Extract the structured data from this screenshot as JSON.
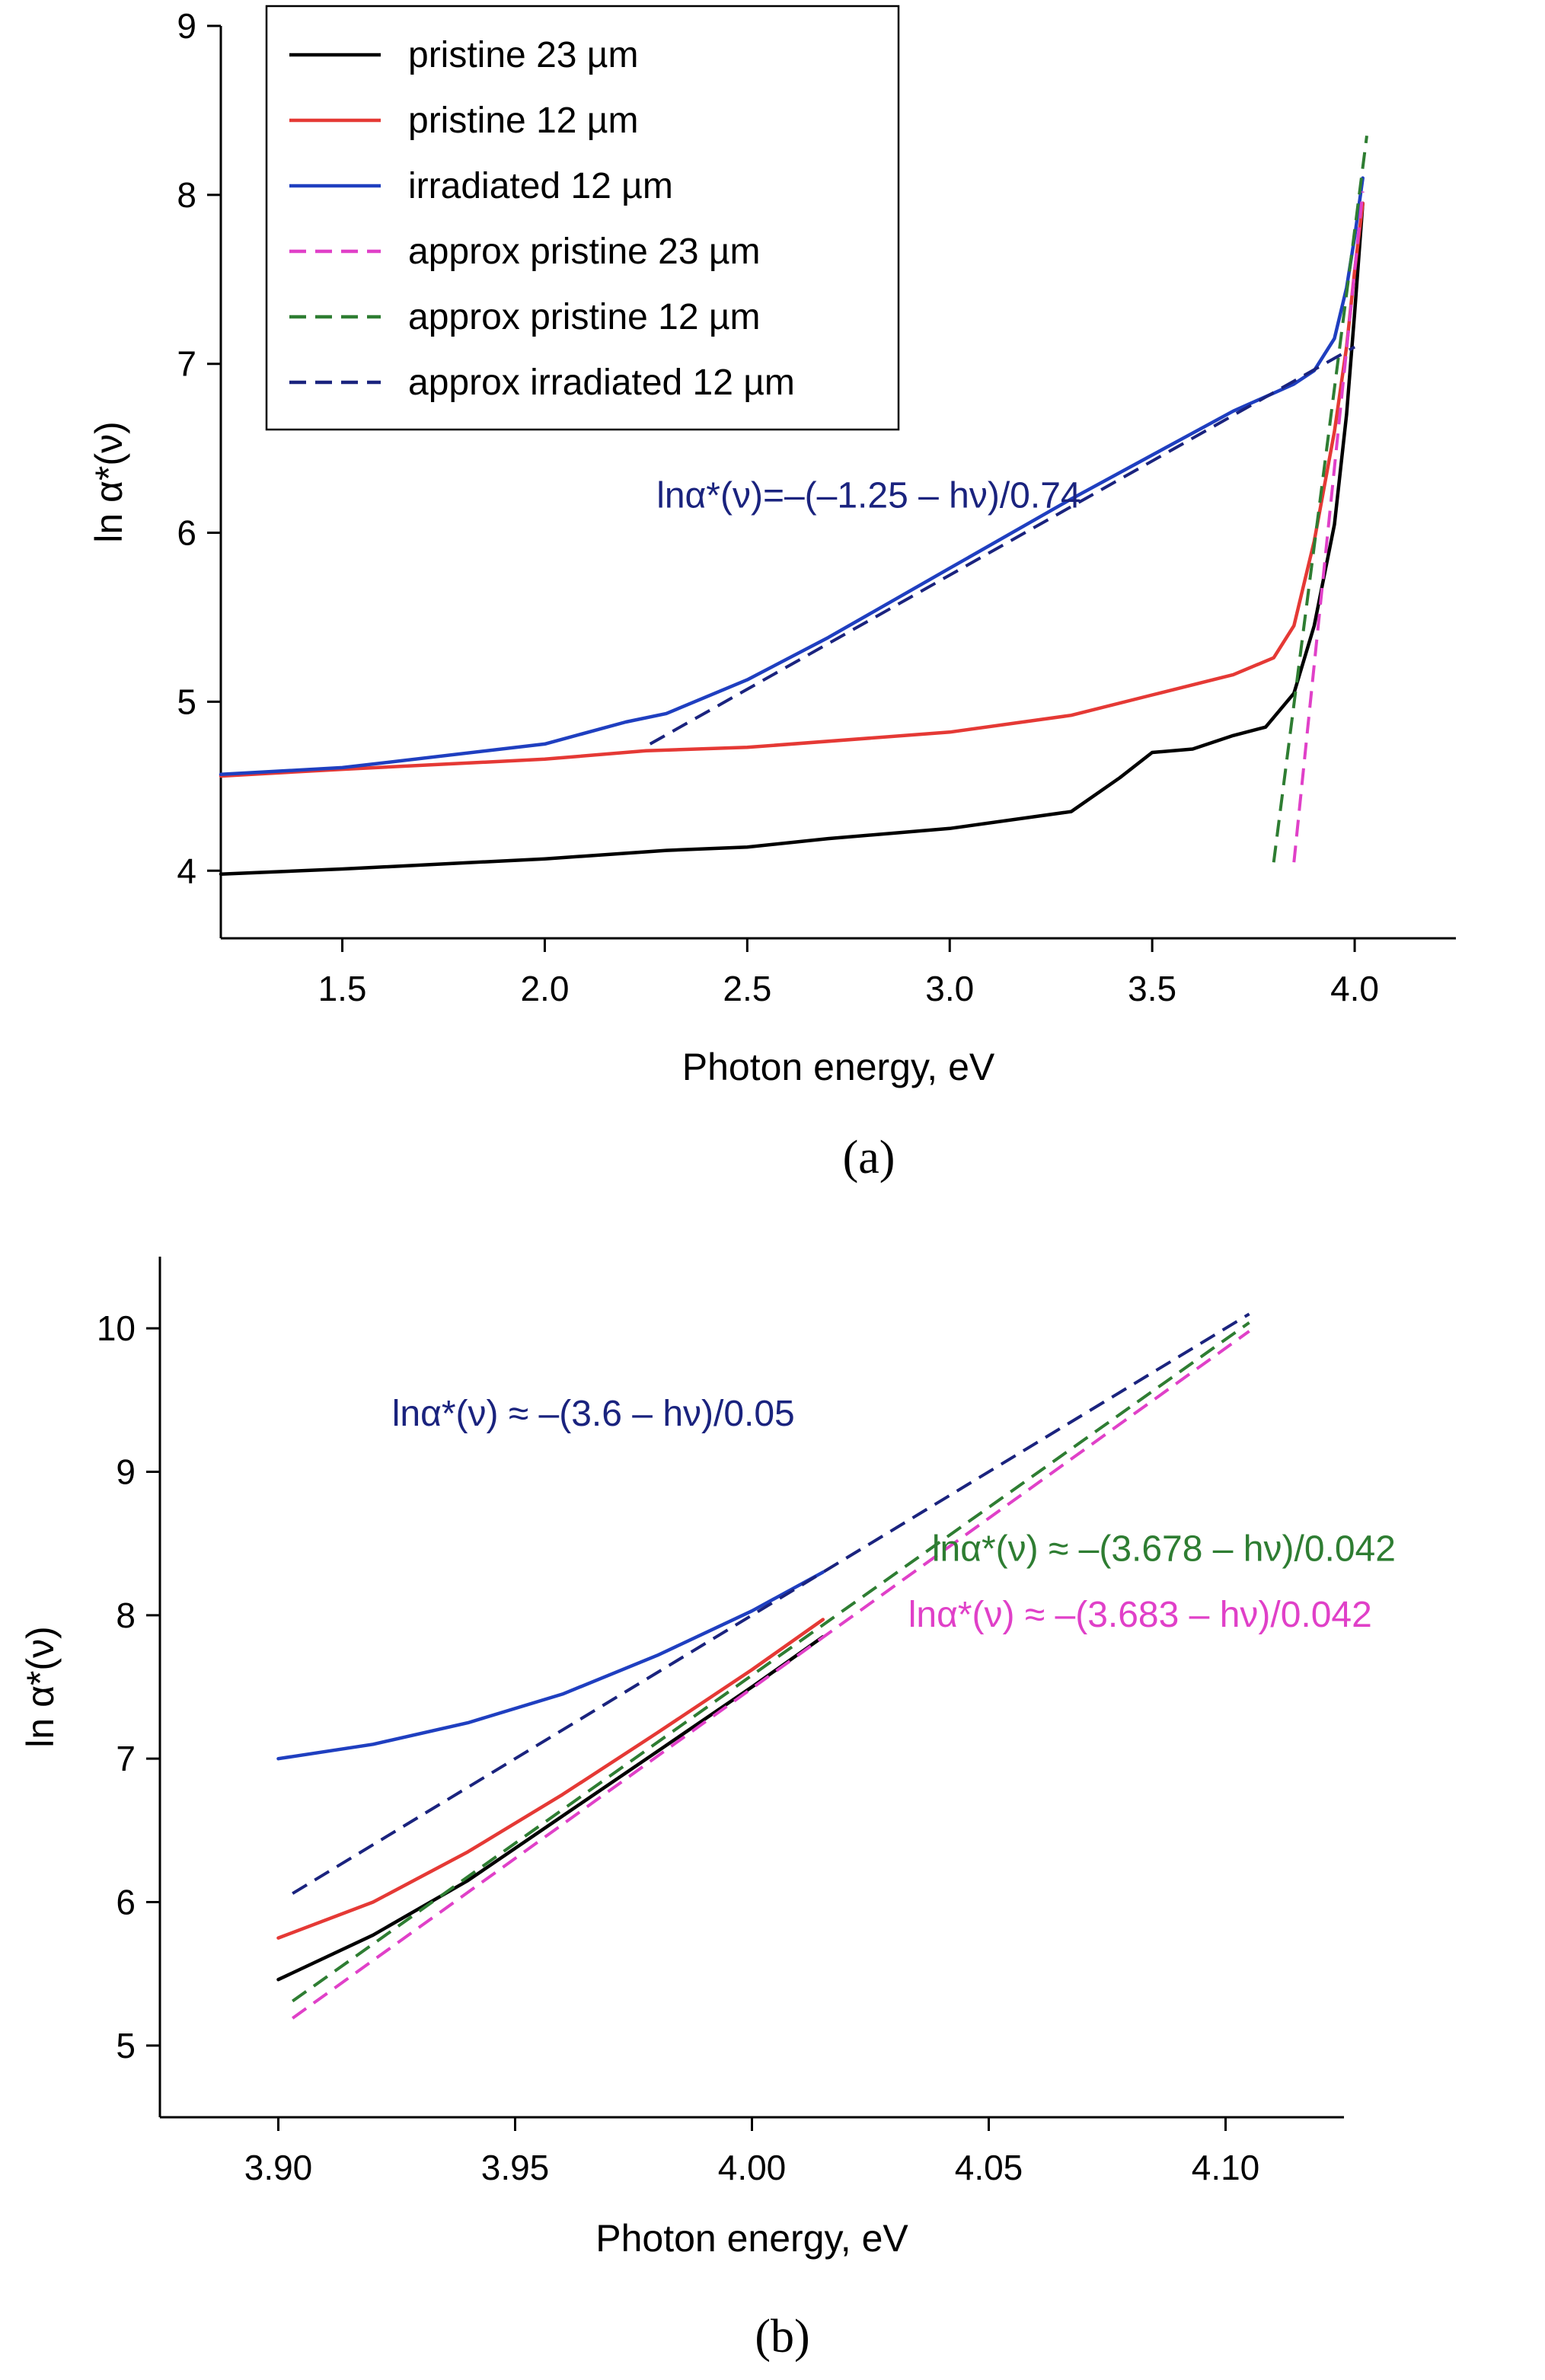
{
  "chart_data": [
    {
      "panel": "a",
      "panel_label": "(a)",
      "type": "line",
      "xlabel": "Photon energy, eV",
      "ylabel": "ln α*(ν)",
      "xlim": [
        1.2,
        4.25
      ],
      "ylim": [
        3.6,
        9.0
      ],
      "xticks": [
        1.5,
        2.0,
        2.5,
        3.0,
        3.5,
        4.0
      ],
      "xtick_labels": [
        "1.5",
        "2.0",
        "2.5",
        "3.0",
        "3.5",
        "4.0"
      ],
      "yticks": [
        4,
        5,
        6,
        7,
        8,
        9
      ],
      "ytick_labels": [
        "4",
        "5",
        "6",
        "7",
        "8",
        "9"
      ],
      "legend_position": "top-left",
      "annotations": [
        {
          "text": "lnα*(ν)=–(–1.25 – hν)/0.74",
          "color": "#1a237e",
          "at": [
            2.8,
            6.15
          ]
        }
      ],
      "series": [
        {
          "name": "pristine 23 µm",
          "color": "#000000",
          "style": "solid",
          "x": [
            1.2,
            1.5,
            2.0,
            2.3,
            2.5,
            2.7,
            3.0,
            3.3,
            3.42,
            3.5,
            3.6,
            3.7,
            3.78,
            3.85,
            3.9,
            3.95,
            3.98,
            4.0,
            4.02
          ],
          "y": [
            3.98,
            4.01,
            4.07,
            4.12,
            4.14,
            4.19,
            4.25,
            4.35,
            4.55,
            4.7,
            4.72,
            4.8,
            4.85,
            5.05,
            5.45,
            6.05,
            6.7,
            7.3,
            7.95
          ]
        },
        {
          "name": "pristine 12 µm",
          "color": "#e53935",
          "style": "solid",
          "x": [
            1.2,
            1.5,
            2.0,
            2.25,
            2.5,
            3.0,
            3.3,
            3.5,
            3.7,
            3.8,
            3.85,
            3.9,
            3.95,
            3.98,
            4.0,
            4.02
          ],
          "y": [
            4.56,
            4.6,
            4.66,
            4.71,
            4.73,
            4.82,
            4.92,
            5.04,
            5.16,
            5.26,
            5.45,
            5.95,
            6.6,
            7.1,
            7.55,
            7.95
          ]
        },
        {
          "name": "irradiated 12 µm",
          "color": "#1f3fc0",
          "style": "solid",
          "x": [
            1.2,
            1.5,
            2.0,
            2.2,
            2.3,
            2.5,
            2.7,
            3.0,
            3.3,
            3.5,
            3.7,
            3.85,
            3.9,
            3.95,
            3.98,
            4.0,
            4.02
          ],
          "y": [
            4.57,
            4.61,
            4.75,
            4.88,
            4.93,
            5.13,
            5.38,
            5.79,
            6.2,
            6.46,
            6.72,
            6.88,
            6.96,
            7.15,
            7.45,
            7.75,
            8.1
          ]
        },
        {
          "name": "approx pristine 23 µm",
          "color": "#e040c8",
          "style": "dashed",
          "x": [
            3.85,
            4.02
          ],
          "y": [
            4.05,
            8.02
          ]
        },
        {
          "name": "approx pristine 12 µm",
          "color": "#2e7d32",
          "style": "dashed",
          "x": [
            3.8,
            4.03
          ],
          "y": [
            4.05,
            8.35
          ]
        },
        {
          "name": "approx irradiated 12 µm",
          "color": "#1a237e",
          "style": "dashed",
          "x": [
            2.26,
            4.0
          ],
          "y": [
            4.75,
            7.1
          ]
        }
      ]
    },
    {
      "panel": "b",
      "panel_label": "(b)",
      "type": "line",
      "xlabel": "Photon energy, eV",
      "ylabel": "ln α*(ν)",
      "xlim": [
        3.875,
        4.125
      ],
      "ylim": [
        4.5,
        10.5
      ],
      "xticks": [
        3.9,
        3.95,
        4.0,
        4.05,
        4.1
      ],
      "xtick_labels": [
        "3.90",
        "3.95",
        "4.00",
        "4.05",
        "4.10"
      ],
      "yticks": [
        5,
        6,
        7,
        8,
        9,
        10
      ],
      "ytick_labels": [
        "5",
        "6",
        "7",
        "8",
        "9",
        "10"
      ],
      "annotations": [
        {
          "text": "lnα*(ν) ≈ –(3.6 – hν)/0.05",
          "color": "#1a237e",
          "at": [
            3.924,
            9.32
          ]
        },
        {
          "text": "lnα*(ν) ≈ –(3.678 – hν)/0.042",
          "color": "#2e7d32",
          "at": [
            4.038,
            8.38
          ]
        },
        {
          "text": "lnα*(ν) ≈ –(3.683 – hν)/0.042",
          "color": "#e040c8",
          "at": [
            4.033,
            7.92
          ]
        }
      ],
      "series": [
        {
          "name": "pristine 23 µm",
          "color": "#000000",
          "style": "solid",
          "x": [
            3.9,
            3.92,
            3.94,
            3.96,
            3.98,
            4.0,
            4.015
          ],
          "y": [
            5.46,
            5.77,
            6.15,
            6.6,
            7.05,
            7.5,
            7.85
          ]
        },
        {
          "name": "pristine 12 µm",
          "color": "#e53935",
          "style": "solid",
          "x": [
            3.9,
            3.92,
            3.94,
            3.96,
            3.98,
            4.0,
            4.015
          ],
          "y": [
            5.75,
            6.0,
            6.35,
            6.75,
            7.18,
            7.62,
            7.97
          ]
        },
        {
          "name": "irradiated 12 µm",
          "color": "#1f3fc0",
          "style": "solid",
          "x": [
            3.9,
            3.92,
            3.94,
            3.96,
            3.98,
            4.0,
            4.015
          ],
          "y": [
            7.0,
            7.1,
            7.25,
            7.45,
            7.72,
            8.03,
            8.3
          ]
        },
        {
          "name": "approx pristine 23 µm",
          "color": "#e040c8",
          "style": "dashed",
          "x": [
            3.903,
            4.105
          ],
          "y": [
            5.19,
            9.98
          ]
        },
        {
          "name": "approx pristine 12 µm",
          "color": "#2e7d32",
          "style": "dashed",
          "x": [
            3.903,
            4.105
          ],
          "y": [
            5.31,
            10.04
          ]
        },
        {
          "name": "approx irradiated 12 µm",
          "color": "#1a237e",
          "style": "dashed",
          "x": [
            3.903,
            4.105
          ],
          "y": [
            6.06,
            10.1
          ]
        }
      ]
    }
  ]
}
